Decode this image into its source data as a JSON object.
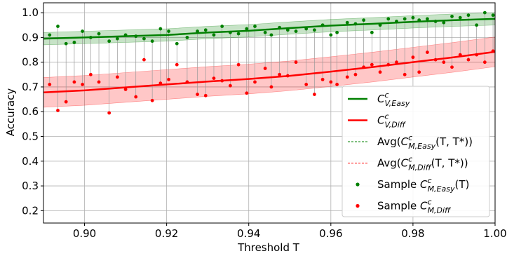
{
  "chart_data": {
    "type": "line",
    "xlabel": "Threshold T",
    "ylabel": "Accuracy",
    "xlim": [
      0.89,
      1.0
    ],
    "ylim": [
      0.15,
      1.04
    ],
    "xticks": [
      0.9,
      0.92,
      0.94,
      0.96,
      0.98,
      1.0
    ],
    "xtick_labels": [
      "0.90",
      "0.92",
      "0.94",
      "0.96",
      "0.98",
      "1.00"
    ],
    "yticks": [
      0.2,
      0.3,
      0.4,
      0.5,
      0.6,
      0.7,
      0.8,
      0.9,
      1.0
    ],
    "ytick_labels": [
      "0.2",
      "0.3",
      "0.4",
      "0.5",
      "0.6",
      "0.7",
      "0.8",
      "0.9",
      "1.0"
    ],
    "grid": true,
    "legend_position": "lower-right",
    "colors": {
      "easy": "#008000",
      "diff": "#ff0000"
    },
    "series": [
      {
        "name": "C_{V,Easy}^c",
        "type": "line",
        "color": "#008000",
        "x": [
          0.89,
          0.9,
          0.91,
          0.92,
          0.93,
          0.94,
          0.95,
          0.96,
          0.97,
          0.98,
          0.99,
          1.0
        ],
        "y": [
          0.895,
          0.9,
          0.905,
          0.91,
          0.92,
          0.927,
          0.938,
          0.948,
          0.955,
          0.963,
          0.97,
          0.975
        ],
        "band_halfwidth": 0.025
      },
      {
        "name": "C_{V,Diff}^c",
        "type": "line",
        "color": "#ff0000",
        "x": [
          0.89,
          0.9,
          0.91,
          0.92,
          0.93,
          0.94,
          0.95,
          0.96,
          0.97,
          0.98,
          0.99,
          1.0
        ],
        "y": [
          0.678,
          0.686,
          0.698,
          0.71,
          0.722,
          0.732,
          0.745,
          0.762,
          0.78,
          0.8,
          0.82,
          0.842
        ],
        "band_halfwidth": 0.06
      },
      {
        "name": "Sample C_{M,Easy}^c(T)",
        "type": "scatter",
        "color": "#008000",
        "x": [
          0.8915,
          0.8935,
          0.8955,
          0.8975,
          0.8995,
          0.9015,
          0.9035,
          0.906,
          0.908,
          0.91,
          0.9125,
          0.9145,
          0.9165,
          0.9185,
          0.9205,
          0.9225,
          0.925,
          0.9275,
          0.9295,
          0.9315,
          0.9335,
          0.9355,
          0.9375,
          0.9395,
          0.9415,
          0.944,
          0.9455,
          0.9475,
          0.9495,
          0.9515,
          0.954,
          0.956,
          0.958,
          0.96,
          0.9615,
          0.964,
          0.966,
          0.968,
          0.97,
          0.972,
          0.974,
          0.976,
          0.978,
          0.98,
          0.9815,
          0.9835,
          0.9855,
          0.9875,
          0.9895,
          0.9915,
          0.9935,
          0.9955,
          0.9975,
          0.9995
        ],
        "y": [
          0.91,
          0.945,
          0.875,
          0.88,
          0.925,
          0.9,
          0.915,
          0.885,
          0.895,
          0.91,
          0.905,
          0.895,
          0.885,
          0.935,
          0.925,
          0.875,
          0.9,
          0.925,
          0.93,
          0.91,
          0.945,
          0.92,
          0.915,
          0.935,
          0.945,
          0.92,
          0.91,
          0.94,
          0.93,
          0.925,
          0.935,
          0.93,
          0.95,
          0.91,
          0.92,
          0.96,
          0.955,
          0.97,
          0.92,
          0.95,
          0.975,
          0.965,
          0.975,
          0.98,
          0.97,
          0.975,
          0.965,
          0.96,
          0.985,
          0.98,
          0.99,
          0.95,
          1.0,
          0.99
        ]
      },
      {
        "name": "Sample C_{M,Diff}^c",
        "type": "scatter",
        "color": "#ff0000",
        "x": [
          0.8915,
          0.8935,
          0.8955,
          0.8975,
          0.8995,
          0.9015,
          0.9035,
          0.906,
          0.908,
          0.91,
          0.9125,
          0.9145,
          0.9165,
          0.9185,
          0.9205,
          0.9225,
          0.925,
          0.9275,
          0.9295,
          0.9315,
          0.9335,
          0.9355,
          0.9375,
          0.9395,
          0.9415,
          0.944,
          0.9455,
          0.9475,
          0.9495,
          0.9515,
          0.954,
          0.956,
          0.958,
          0.96,
          0.9615,
          0.964,
          0.966,
          0.968,
          0.97,
          0.972,
          0.974,
          0.976,
          0.978,
          0.98,
          0.9815,
          0.9835,
          0.9855,
          0.9875,
          0.9895,
          0.9915,
          0.9935,
          0.9955,
          0.9975,
          0.9995
        ],
        "y": [
          0.71,
          0.605,
          0.64,
          0.72,
          0.71,
          0.75,
          0.72,
          0.595,
          0.74,
          0.69,
          0.66,
          0.81,
          0.645,
          0.715,
          0.73,
          0.79,
          0.72,
          0.67,
          0.665,
          0.735,
          0.725,
          0.705,
          0.79,
          0.675,
          0.72,
          0.775,
          0.7,
          0.75,
          0.745,
          0.8,
          0.71,
          0.67,
          0.73,
          0.72,
          0.71,
          0.74,
          0.75,
          0.78,
          0.79,
          0.76,
          0.79,
          0.8,
          0.75,
          0.82,
          0.76,
          0.84,
          0.81,
          0.8,
          0.78,
          0.83,
          0.81,
          0.83,
          0.8,
          0.845
        ]
      }
    ],
    "legend": [
      {
        "prefix": "",
        "base": "C",
        "sup": "c",
        "sub": "V,Easy",
        "suffix": "",
        "kind": "line",
        "color": "#008000"
      },
      {
        "prefix": "",
        "base": "C",
        "sup": "c",
        "sub": "V,Diff",
        "suffix": "",
        "kind": "line",
        "color": "#ff0000"
      },
      {
        "prefix": "Avg(",
        "base": "C",
        "sup": "c",
        "sub": "M,Easy",
        "suffix": "(T, T*))",
        "kind": "dashed",
        "color": "#008000"
      },
      {
        "prefix": "Avg(",
        "base": "C",
        "sup": "c",
        "sub": "M,Diff",
        "suffix": "(T, T*))",
        "kind": "dashed",
        "color": "#ff0000"
      },
      {
        "prefix": "Sample ",
        "base": "C",
        "sup": "c",
        "sub": "M,Easy",
        "suffix": "(T)",
        "kind": "dot",
        "color": "#008000"
      },
      {
        "prefix": "Sample ",
        "base": "C",
        "sup": "c",
        "sub": "M,Diff",
        "suffix": "",
        "kind": "dot",
        "color": "#ff0000"
      }
    ]
  }
}
